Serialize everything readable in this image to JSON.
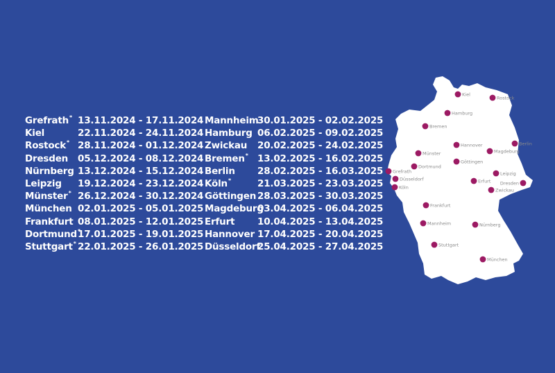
{
  "colors": {
    "background": "#2d4a9b",
    "text": "#ffffff",
    "map": "#ffffff",
    "marker": "#9c1a63",
    "map_label": "#8a8a8a"
  },
  "schedule_left": [
    {
      "city": "Grefrath",
      "star": "*",
      "dates": "13.11.2024 - 17.11.2024"
    },
    {
      "city": "Kiel",
      "star": "",
      "dates": "22.11.2024 - 24.11.2024"
    },
    {
      "city": "Rostock",
      "star": "*",
      "dates": "28.11.2024 - 01.12.2024"
    },
    {
      "city": "Dresden",
      "star": "",
      "dates": "05.12.2024 - 08.12.2024"
    },
    {
      "city": "Nürnberg",
      "star": "",
      "dates": "13.12.2024 - 15.12.2024"
    },
    {
      "city": "Leipzig",
      "star": "",
      "dates": "19.12.2024 - 23.12.2024"
    },
    {
      "city": "Münster",
      "star": "*",
      "dates": "26.12.2024 - 30.12.2024"
    },
    {
      "city": "München",
      "star": "",
      "dates": "02.01.2025 - 05.01.2025"
    },
    {
      "city": "Frankfurt",
      "star": "",
      "dates": "08.01.2025 - 12.01.2025"
    },
    {
      "city": "Dortmund",
      "star": "*",
      "dates": "17.01.2025 - 19.01.2025"
    },
    {
      "city": "Stuttgart",
      "star": "*",
      "dates": "22.01.2025 - 26.01.2025"
    }
  ],
  "schedule_right": [
    {
      "city": "Mannheim",
      "star": "",
      "dates": "30.01.2025 - 02.02.2025"
    },
    {
      "city": "Hamburg",
      "star": "",
      "dates": "06.02.2025 - 09.02.2025"
    },
    {
      "city": "Zwickau",
      "star": "",
      "dates": "20.02.2025 - 24.02.2025"
    },
    {
      "city": "Bremen",
      "star": "*",
      "dates": "13.02.2025 - 16.02.2025"
    },
    {
      "city": "Berlin",
      "star": "",
      "dates": "28.02.2025 - 16.03.2025"
    },
    {
      "city": "Köln",
      "star": "*",
      "dates": "21.03.2025 - 23.03.2025"
    },
    {
      "city": "Göttingen",
      "star": "",
      "dates": "28.03.2025 - 30.03.2025"
    },
    {
      "city": "Magdeburg",
      "star": "",
      "dates": "03.04.2025 - 06.04.2025"
    },
    {
      "city": "Erfurt",
      "star": "",
      "dates": "10.04.2025 - 13.04.2025"
    },
    {
      "city": "Hannover",
      "star": "",
      "dates": "17.04.2025 - 20.04.2025"
    },
    {
      "city": "Düsseldorf",
      "star": "",
      "dates": "25.04.2025 - 27.04.2025"
    }
  ],
  "map_cities": [
    "Kiel",
    "Rostock",
    "Hamburg",
    "Bremen",
    "Hannover",
    "Berlin",
    "Münster",
    "Magdeburg",
    "Göttingen",
    "Grefrath",
    "Dortmund",
    "Düsseldorf",
    "Köln",
    "Leipzig",
    "Erfurt",
    "Dresden",
    "Zwickau",
    "Frankfurt",
    "Mannheim",
    "Nürnberg",
    "Stuttgart",
    "München"
  ]
}
